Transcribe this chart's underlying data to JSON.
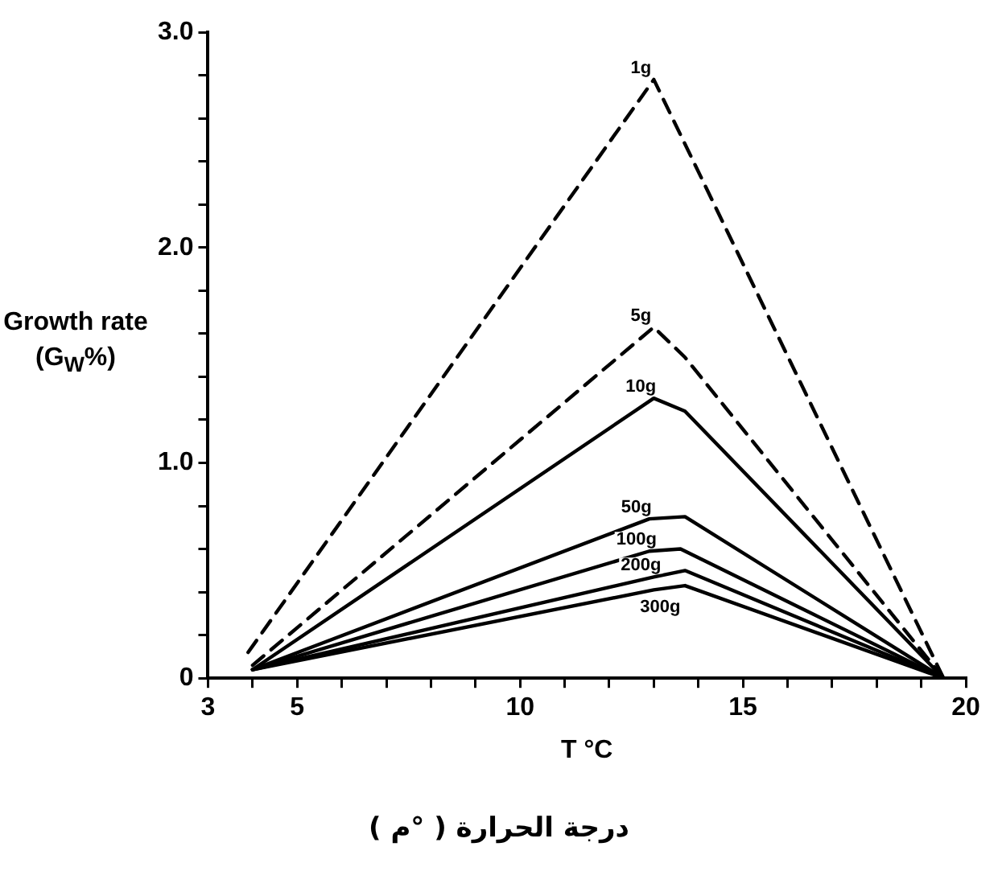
{
  "chart_data": {
    "type": "line",
    "xlabel": "T °C",
    "ylabel": "Growth rate (G$_{W}$%)",
    "annotations": [
      "درجة الحرارة ( °م )"
    ],
    "xlim": [
      3,
      20
    ],
    "xticks": [
      3,
      {
        "value": 4,
        "label": null
      },
      5,
      {
        "value": 6,
        "label": null
      },
      {
        "value": 7,
        "label": null
      },
      {
        "value": 8,
        "label": null
      },
      {
        "value": 9,
        "label": null
      },
      10,
      {
        "value": 11,
        "label": null
      },
      {
        "value": 12,
        "label": null
      },
      {
        "value": 13,
        "label": null
      },
      {
        "value": 14,
        "label": null
      },
      15,
      {
        "value": 16,
        "label": null
      },
      {
        "value": 17,
        "label": null
      },
      {
        "value": 18,
        "label": null
      },
      {
        "value": 19,
        "label": null
      },
      20
    ],
    "ylim": [
      0,
      3
    ],
    "yticks": [
      {
        "value": 0,
        "label": "0"
      },
      {
        "value": 0.2,
        "label": null
      },
      {
        "value": 0.4,
        "label": null
      },
      {
        "value": 0.6,
        "label": null
      },
      {
        "value": 0.8,
        "label": null
      },
      {
        "value": 1,
        "label": "1.0"
      },
      {
        "value": 1.2,
        "label": null
      },
      {
        "value": 1.4,
        "label": null
      },
      {
        "value": 1.6,
        "label": null
      },
      {
        "value": 1.8,
        "label": null
      },
      {
        "value": 2,
        "label": "2.0"
      },
      {
        "value": 2.2,
        "label": null
      },
      {
        "value": 2.4,
        "label": null
      },
      {
        "value": 2.6,
        "label": null
      },
      {
        "value": 2.8,
        "label": null
      },
      {
        "value": 3,
        "label": "3.0"
      }
    ],
    "grid": false,
    "legend": false,
    "marker": "none",
    "series": [
      {
        "name": "1g",
        "color": "#000000",
        "line_style": "dashed",
        "x": [
          3.9,
          13,
          19.5
        ],
        "values": [
          0.12,
          2.78,
          0
        ]
      },
      {
        "name": "5g",
        "color": "#000000",
        "line_style": "dashed",
        "x": [
          4,
          13,
          13.7,
          19.5
        ],
        "values": [
          0.06,
          1.63,
          1.49,
          0
        ]
      },
      {
        "name": "10g",
        "color": "#000000",
        "line_style": "solid",
        "x": [
          4,
          13,
          13.7,
          19.5
        ],
        "values": [
          0.04,
          1.3,
          1.24,
          0
        ]
      },
      {
        "name": "50g",
        "color": "#000000",
        "line_style": "solid",
        "x": [
          4,
          12.9,
          13.7,
          19.5
        ],
        "values": [
          0.04,
          0.74,
          0.75,
          0
        ]
      },
      {
        "name": "100g",
        "color": "#000000",
        "line_style": "solid",
        "x": [
          4,
          12.9,
          13.6,
          19.5
        ],
        "values": [
          0.04,
          0.59,
          0.6,
          0
        ]
      },
      {
        "name": "200g",
        "color": "#000000",
        "line_style": "solid",
        "x": [
          4,
          13,
          13.7,
          19.5
        ],
        "values": [
          0.04,
          0.47,
          0.5,
          0
        ]
      },
      {
        "name": "300g",
        "color": "#000000",
        "line_style": "solid",
        "x": [
          4,
          13,
          13.7,
          19.5
        ],
        "values": [
          0.04,
          0.41,
          0.43,
          0
        ]
      }
    ]
  }
}
